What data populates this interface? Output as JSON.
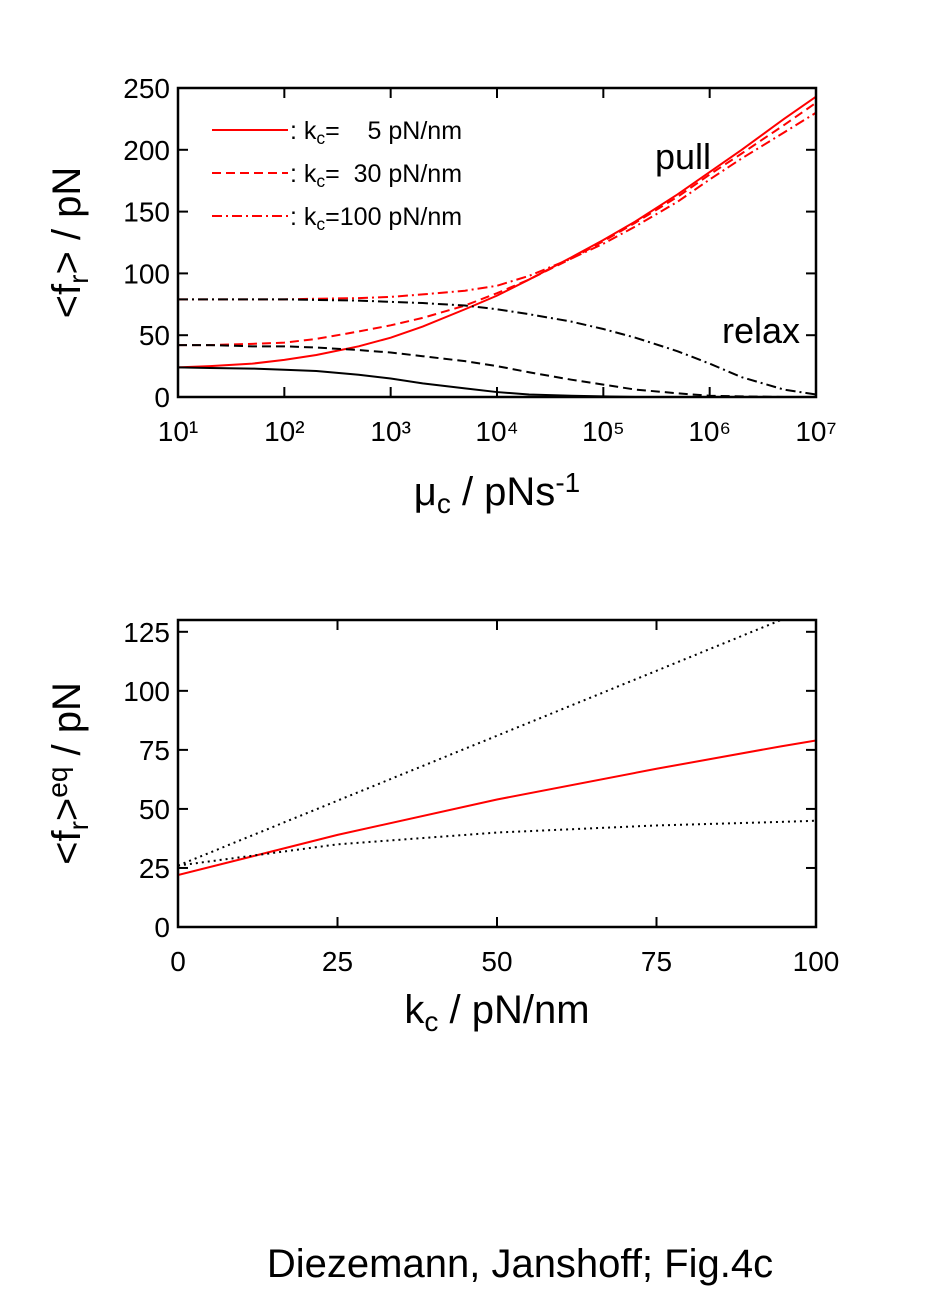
{
  "chart_data": [
    {
      "type": "line",
      "xscale": "log",
      "xlabel": [
        {
          "t": "μ"
        },
        {
          "sub": "c"
        },
        {
          "t": " / pNs"
        },
        {
          "sup": "-1"
        }
      ],
      "ylabel": [
        {
          "t": "<f"
        },
        {
          "sub": "r"
        },
        {
          "t": "> / pN"
        }
      ],
      "xlim": [
        10,
        10000000
      ],
      "xticks": [
        {
          "value": 10,
          "label": "10¹"
        },
        {
          "value": 100,
          "label": "10²"
        },
        {
          "value": 1000,
          "label": "10³"
        },
        {
          "value": 10000,
          "label": "10⁴"
        },
        {
          "value": 100000,
          "label": "10⁵"
        },
        {
          "value": 1000000,
          "label": "10⁶"
        },
        {
          "value": 10000000,
          "label": "10⁷"
        }
      ],
      "ylim": [
        0,
        250
      ],
      "yticks": [
        0,
        50,
        100,
        150,
        200,
        250
      ],
      "x": [
        10,
        20,
        50,
        100,
        200,
        500,
        1000,
        2000,
        5000,
        10000,
        20000,
        50000,
        100000,
        200000,
        500000,
        1000000,
        2000000,
        5000000,
        10000000
      ],
      "series": [
        {
          "name": [
            {
              "t": ": k"
            },
            {
              "sub": "c"
            },
            {
              "t": "=    5 pN/nm"
            }
          ],
          "color": "#ff0000",
          "dash": "solid",
          "values": [
            24,
            25,
            27,
            30,
            34,
            41,
            48,
            57,
            71,
            82,
            95,
            113,
            127,
            142,
            164,
            182,
            200,
            225,
            243
          ]
        },
        {
          "name": [
            {
              "t": ": k"
            },
            {
              "sub": "c"
            },
            {
              "t": "=  30 pN/nm"
            }
          ],
          "color": "#ff0000",
          "dash": "dashed",
          "values": [
            42,
            42,
            43,
            44,
            47,
            53,
            58,
            64,
            74,
            84,
            95,
            112,
            126,
            141,
            162,
            180,
            197,
            220,
            238
          ]
        },
        {
          "name": [
            {
              "t": ": k"
            },
            {
              "sub": "c"
            },
            {
              "t": "=100 pN/nm"
            }
          ],
          "color": "#ff0000",
          "dash": "dashdot",
          "values": [
            79,
            79,
            79,
            79,
            79.5,
            80,
            81,
            83,
            86,
            90,
            98,
            112,
            124,
            138,
            158,
            176,
            193,
            214,
            230
          ]
        },
        {
          "color": "#000000",
          "dash": "solid",
          "values": [
            24,
            23.5,
            23,
            22,
            21,
            18,
            15,
            11,
            7,
            4,
            2,
            1,
            0.5,
            0,
            0,
            0,
            0,
            0,
            0
          ]
        },
        {
          "color": "#000000",
          "dash": "dashed",
          "values": [
            42,
            42,
            41,
            41,
            40,
            38,
            36,
            33,
            29,
            25,
            20,
            14,
            10,
            6,
            3,
            1,
            0.5,
            0,
            0
          ]
        },
        {
          "color": "#000000",
          "dash": "dashdot",
          "values": [
            79,
            79,
            79,
            79,
            78.5,
            78,
            77,
            76,
            74,
            71,
            67,
            61,
            55,
            48,
            37,
            27,
            16,
            6,
            2
          ]
        }
      ],
      "annotations": [
        {
          "text": "pull",
          "color": "#ff0000"
        },
        {
          "text": "relax",
          "color": "#000000"
        }
      ]
    },
    {
      "type": "line",
      "xlabel": [
        {
          "t": "k"
        },
        {
          "sub": "c"
        },
        {
          "t": " / pN/nm"
        }
      ],
      "ylabel": [
        {
          "t": "<f"
        },
        {
          "sub": "r"
        },
        {
          "t": ">"
        },
        {
          "sup": "eq"
        },
        {
          "t": " / pN"
        }
      ],
      "xlim": [
        0,
        100
      ],
      "xticks": [
        0,
        25,
        50,
        75,
        100
      ],
      "ylim": [
        0,
        130
      ],
      "yticks": [
        0,
        25,
        50,
        75,
        100,
        125
      ],
      "x": [
        0,
        25,
        50,
        75,
        94.5,
        100
      ],
      "series": [
        {
          "color": "#ff0000",
          "dash": "solid",
          "values": [
            22,
            39,
            54,
            67,
            76.5,
            79
          ]
        },
        {
          "color": "#000000",
          "dash": "dotted",
          "values": [
            26,
            53.5,
            81,
            108.5,
            130,
            null
          ]
        },
        {
          "color": "#000000",
          "dash": "dotted",
          "values": [
            26,
            35,
            40,
            43,
            44.5,
            45
          ]
        }
      ]
    }
  ],
  "caption": "Diezemann, Janshoff; Fig.4c"
}
